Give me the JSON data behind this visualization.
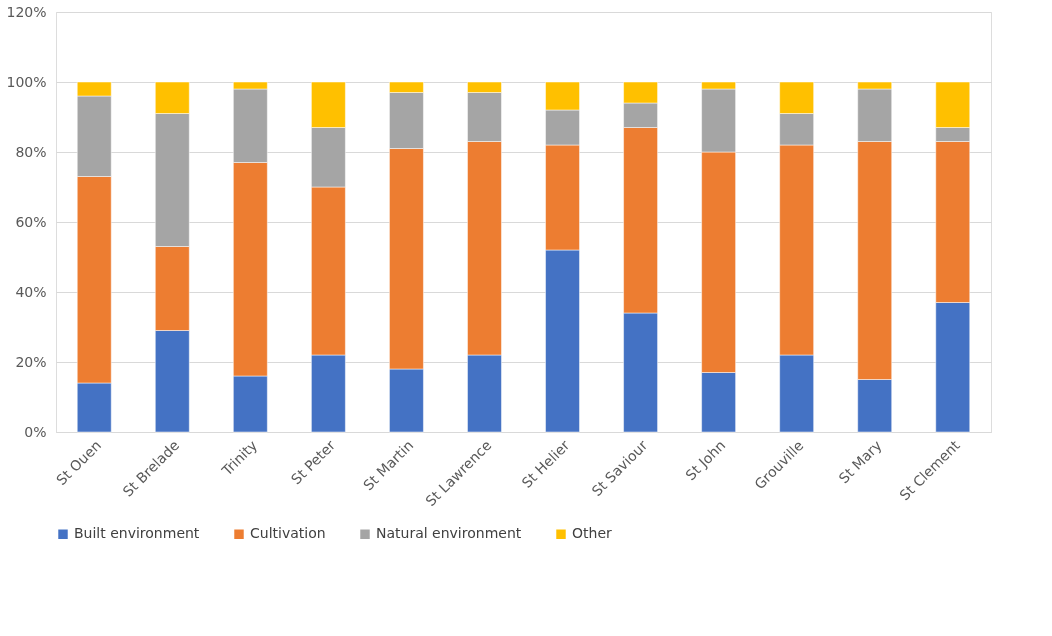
{
  "chart_data": {
    "type": "bar",
    "stacked": true,
    "categories": [
      "St Ouen",
      "St Brelade",
      "Trinity",
      "St Peter",
      "St Martin",
      "St Lawrence",
      "St Helier",
      "St Saviour",
      "St John",
      "Grouville",
      "St Mary",
      "St Clement"
    ],
    "series": [
      {
        "name": "Built environment",
        "color": "#4472c4",
        "values": [
          14,
          29,
          16,
          22,
          18,
          22,
          52,
          34,
          17,
          22,
          15,
          37
        ]
      },
      {
        "name": "Cultivation",
        "color": "#ed7d31",
        "values": [
          59,
          24,
          61,
          48,
          63,
          61,
          30,
          53,
          63,
          60,
          68,
          46
        ]
      },
      {
        "name": "Natural environment",
        "color": "#a5a5a5",
        "values": [
          23,
          38,
          21,
          17,
          16,
          14,
          10,
          7,
          18,
          9,
          15,
          4
        ]
      },
      {
        "name": "Other",
        "color": "#ffc000",
        "values": [
          4,
          9,
          2,
          13,
          3,
          3,
          8,
          6,
          2,
          9,
          2,
          13
        ]
      }
    ],
    "ylim": [
      0,
      120
    ],
    "yticks": [
      {
        "value": 0,
        "label": "0%"
      },
      {
        "value": 20,
        "label": "20%"
      },
      {
        "value": 40,
        "label": "40%"
      },
      {
        "value": 60,
        "label": "60%"
      },
      {
        "value": 80,
        "label": "80%"
      },
      {
        "value": 100,
        "label": "100%"
      },
      {
        "value": 120,
        "label": "120%"
      }
    ],
    "grid": "y",
    "legend": "bottom"
  }
}
